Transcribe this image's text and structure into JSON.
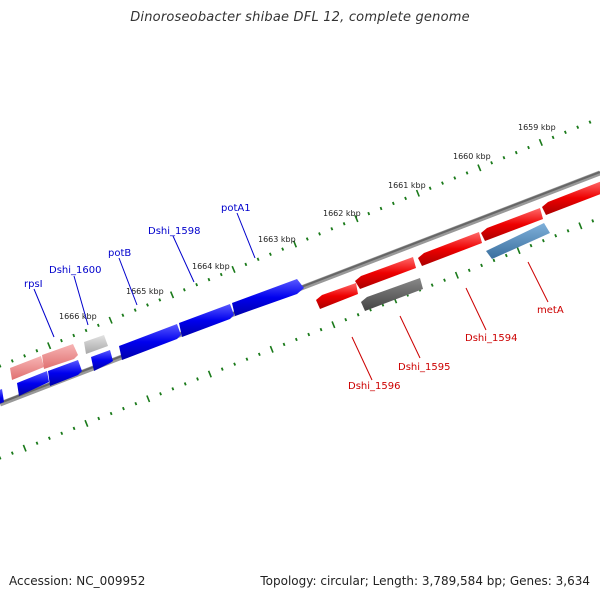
{
  "title": "Dinoroseobacter shibae DFL 12, complete genome",
  "footer": {
    "accession": "Accession: NC_009952",
    "summary": "Topology: circular; Length: 3,789,584 bp; Genes: 3,634"
  },
  "ticks": [
    {
      "label": "1659 kbp"
    },
    {
      "label": "1660 kbp"
    },
    {
      "label": "1661 kbp"
    },
    {
      "label": "1662 kbp"
    },
    {
      "label": "1663 kbp"
    },
    {
      "label": "1664 kbp"
    },
    {
      "label": "1665 kbp"
    },
    {
      "label": "1666 kbp"
    }
  ],
  "genes": [
    {
      "name": "rpsI",
      "strand": "forward"
    },
    {
      "name": "Dshi_1600",
      "strand": "forward"
    },
    {
      "name": "potB",
      "strand": "forward"
    },
    {
      "name": "Dshi_1598",
      "strand": "forward"
    },
    {
      "name": "potA1",
      "strand": "forward"
    },
    {
      "name": "Dshi_1596",
      "strand": "reverse"
    },
    {
      "name": "Dshi_1595",
      "strand": "reverse"
    },
    {
      "name": "Dshi_1594",
      "strand": "reverse"
    },
    {
      "name": "metA",
      "strand": "reverse"
    }
  ],
  "colors": {
    "forward_gene": "#0000ee",
    "reverse_gene": "#ee0000",
    "label_forward": "#0000cc",
    "label_reverse": "#cc0000",
    "backbone": "#777777",
    "tick_mark": "#1a7a1a",
    "rrna_pink": "#ef7f7f",
    "hypothetical_gray": "#bbbbbb",
    "dark_gray": "#555555",
    "steel_blue": "#4d86b8"
  }
}
